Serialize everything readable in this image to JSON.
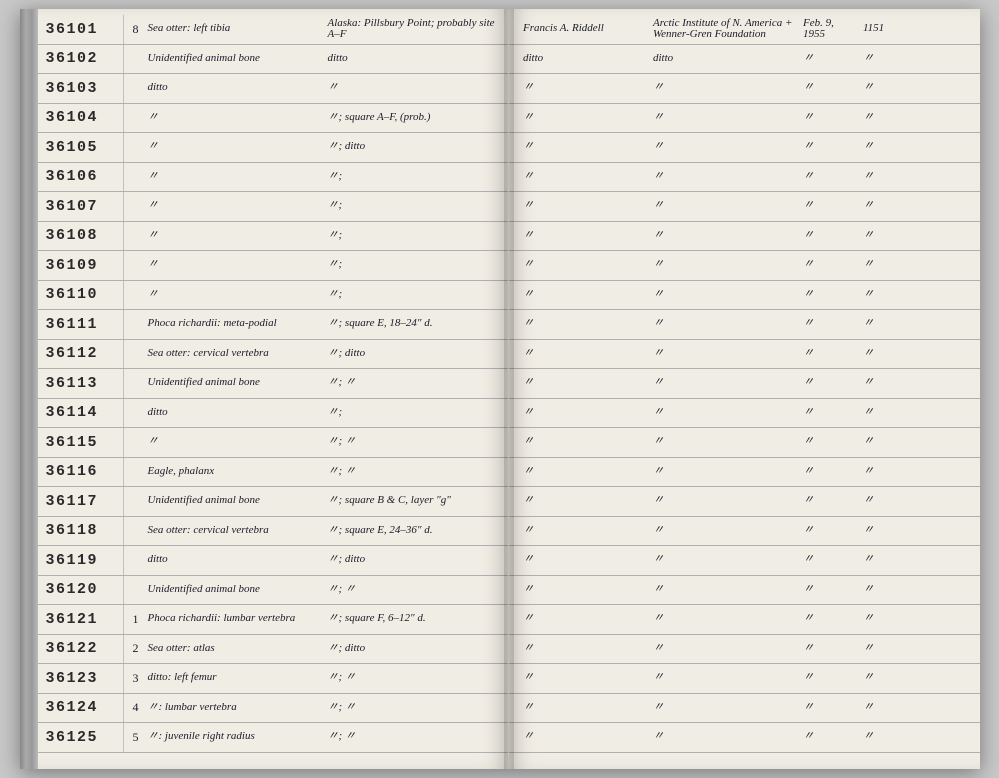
{
  "ledger": {
    "rows": [
      {
        "id": "36101",
        "sub": "8",
        "desc": "Sea otter: left tibia",
        "loc": "Alaska: Pillsbury Point; probably site A–F",
        "r1": "Francis A. Riddell",
        "r2": "Arctic Institute of N. America + Wenner-Gren Foundation",
        "r3": "Feb. 9, 1955",
        "r4": "1151"
      },
      {
        "id": "36102",
        "sub": "",
        "desc": "Unidentified animal bone",
        "loc": "ditto",
        "r1": "ditto",
        "r2": "ditto",
        "r3": "〃",
        "r4": "〃"
      },
      {
        "id": "36103",
        "sub": "",
        "desc": "ditto",
        "loc": "〃",
        "r1": "〃",
        "r2": "〃",
        "r3": "〃",
        "r4": "〃"
      },
      {
        "id": "36104",
        "sub": "",
        "desc": "〃",
        "loc": "〃; square A–F, (prob.)",
        "r1": "〃",
        "r2": "〃",
        "r3": "〃",
        "r4": "〃"
      },
      {
        "id": "36105",
        "sub": "",
        "desc": "〃",
        "loc": "〃; ditto",
        "r1": "〃",
        "r2": "〃",
        "r3": "〃",
        "r4": "〃"
      },
      {
        "id": "36106",
        "sub": "",
        "desc": "〃",
        "loc": "〃;",
        "r1": "〃",
        "r2": "〃",
        "r3": "〃",
        "r4": "〃"
      },
      {
        "id": "36107",
        "sub": "",
        "desc": "〃",
        "loc": "〃;",
        "r1": "〃",
        "r2": "〃",
        "r3": "〃",
        "r4": "〃"
      },
      {
        "id": "36108",
        "sub": "",
        "desc": "〃",
        "loc": "〃;",
        "r1": "〃",
        "r2": "〃",
        "r3": "〃",
        "r4": "〃"
      },
      {
        "id": "36109",
        "sub": "",
        "desc": "〃",
        "loc": "〃;",
        "r1": "〃",
        "r2": "〃",
        "r3": "〃",
        "r4": "〃"
      },
      {
        "id": "36110",
        "sub": "",
        "desc": "〃",
        "loc": "〃;",
        "r1": "〃",
        "r2": "〃",
        "r3": "〃",
        "r4": "〃"
      },
      {
        "id": "36111",
        "sub": "",
        "desc": "Phoca richardii: meta-podial",
        "loc": "〃; square E, 18–24″ d.",
        "r1": "〃",
        "r2": "〃",
        "r3": "〃",
        "r4": "〃"
      },
      {
        "id": "36112",
        "sub": "",
        "desc": "Sea otter: cervical vertebra",
        "loc": "〃; ditto",
        "r1": "〃",
        "r2": "〃",
        "r3": "〃",
        "r4": "〃"
      },
      {
        "id": "36113",
        "sub": "",
        "desc": "Unidentified animal bone",
        "loc": "〃; 〃",
        "r1": "〃",
        "r2": "〃",
        "r3": "〃",
        "r4": "〃"
      },
      {
        "id": "36114",
        "sub": "",
        "desc": "ditto",
        "loc": "〃;",
        "r1": "〃",
        "r2": "〃",
        "r3": "〃",
        "r4": "〃"
      },
      {
        "id": "36115",
        "sub": "",
        "desc": "〃",
        "loc": "〃; 〃",
        "r1": "〃",
        "r2": "〃",
        "r3": "〃",
        "r4": "〃"
      },
      {
        "id": "36116",
        "sub": "",
        "desc": "Eagle, phalanx",
        "loc": "〃; 〃",
        "r1": "〃",
        "r2": "〃",
        "r3": "〃",
        "r4": "〃"
      },
      {
        "id": "36117",
        "sub": "",
        "desc": "Unidentified animal bone",
        "loc": "〃; square B & C, layer \"g\"",
        "r1": "〃",
        "r2": "〃",
        "r3": "〃",
        "r4": "〃"
      },
      {
        "id": "36118",
        "sub": "",
        "desc": "Sea otter: cervical vertebra",
        "loc": "〃; square E, 24–36″ d.",
        "r1": "〃",
        "r2": "〃",
        "r3": "〃",
        "r4": "〃"
      },
      {
        "id": "36119",
        "sub": "",
        "desc": "ditto",
        "loc": "〃; ditto",
        "r1": "〃",
        "r2": "〃",
        "r3": "〃",
        "r4": "〃"
      },
      {
        "id": "36120",
        "sub": "",
        "desc": "Unidentified animal bone",
        "loc": "〃; 〃",
        "r1": "〃",
        "r2": "〃",
        "r3": "〃",
        "r4": "〃"
      },
      {
        "id": "36121",
        "sub": "1",
        "desc": "Phoca richardii: lumbar vertebra",
        "loc": "〃; square F, 6–12″ d.",
        "r1": "〃",
        "r2": "〃",
        "r3": "〃",
        "r4": "〃"
      },
      {
        "id": "36122",
        "sub": "2",
        "desc": "Sea otter: atlas",
        "loc": "〃; ditto",
        "r1": "〃",
        "r2": "〃",
        "r3": "〃",
        "r4": "〃"
      },
      {
        "id": "36123",
        "sub": "3",
        "desc": "ditto: left femur",
        "loc": "〃; 〃",
        "r1": "〃",
        "r2": "〃",
        "r3": "〃",
        "r4": "〃"
      },
      {
        "id": "36124",
        "sub": "4",
        "desc": "〃: lumbar vertebra",
        "loc": "〃; 〃",
        "r1": "〃",
        "r2": "〃",
        "r3": "〃",
        "r4": "〃"
      },
      {
        "id": "36125",
        "sub": "5",
        "desc": "〃: juvenile right radius",
        "loc": "〃; 〃",
        "r1": "〃",
        "r2": "〃",
        "r3": "〃",
        "r4": "〃"
      }
    ]
  },
  "colors": {
    "paper": "#f0ede4",
    "ink": "#1a1a2a",
    "stamp": "#2a2a2a",
    "rule": "rgba(60,60,80,0.35)"
  }
}
